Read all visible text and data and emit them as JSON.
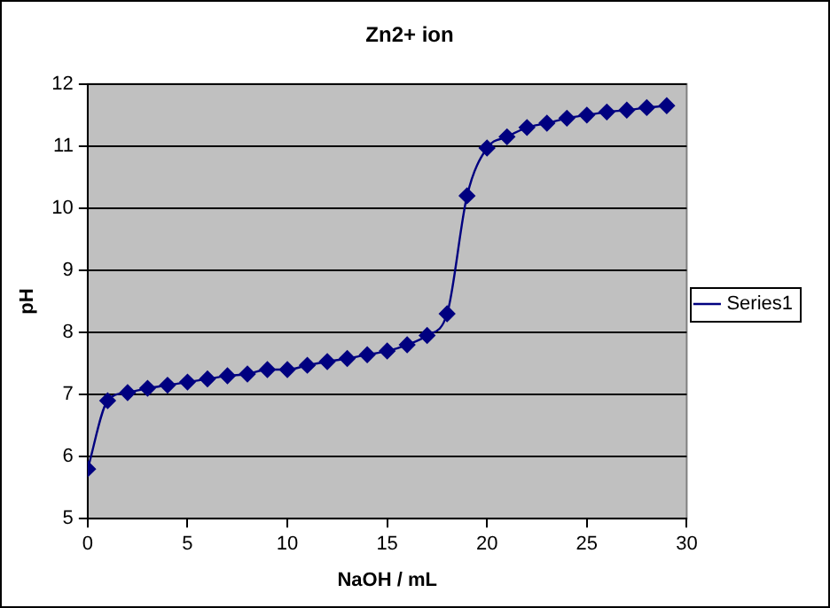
{
  "chart_data": {
    "type": "line",
    "title": "Zn2+ ion",
    "xlabel": "NaOH / mL",
    "ylabel": "pH",
    "x": [
      0,
      1,
      2,
      3,
      4,
      5,
      6,
      7,
      8,
      9,
      10,
      11,
      12,
      13,
      14,
      15,
      16,
      17,
      18,
      19,
      20,
      21,
      22,
      23,
      24,
      25,
      26,
      27,
      28,
      29
    ],
    "series": [
      {
        "name": "Series1",
        "color": "#000080",
        "values": [
          5.8,
          6.9,
          7.03,
          7.1,
          7.15,
          7.2,
          7.25,
          7.3,
          7.33,
          7.4,
          7.4,
          7.47,
          7.53,
          7.58,
          7.64,
          7.7,
          7.8,
          7.95,
          8.3,
          10.2,
          10.97,
          11.15,
          11.3,
          11.37,
          11.45,
          11.5,
          11.55,
          11.58,
          11.62,
          11.65
        ]
      }
    ],
    "xlim": [
      0,
      30
    ],
    "xticks": [
      0,
      5,
      10,
      15,
      20,
      25,
      30
    ],
    "ylim": [
      5,
      12
    ],
    "yticks": [
      5,
      6,
      7,
      8,
      9,
      10,
      11,
      12
    ],
    "grid": "y",
    "legend": "right",
    "marker": "diamond",
    "line_style": "solid"
  }
}
